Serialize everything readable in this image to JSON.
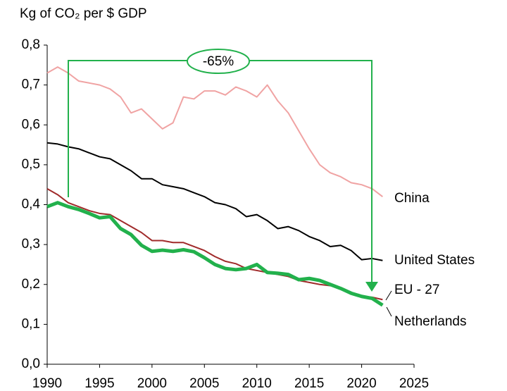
{
  "chart_data": {
    "type": "line",
    "title": "Kg of CO₂ per $ GDP",
    "annotation": "-65%",
    "x": [
      1990,
      1991,
      1992,
      1993,
      1994,
      1995,
      1996,
      1997,
      1998,
      1999,
      2000,
      2001,
      2002,
      2003,
      2004,
      2005,
      2006,
      2007,
      2008,
      2009,
      2010,
      2011,
      2012,
      2013,
      2014,
      2015,
      2016,
      2017,
      2018,
      2019,
      2020,
      2021,
      2022
    ],
    "xlim": [
      1990,
      2025
    ],
    "xticks": [
      1990,
      1995,
      2000,
      2005,
      2010,
      2015,
      2020,
      2025
    ],
    "ylim": [
      0,
      0.8
    ],
    "yticks": [
      {
        "value": 0,
        "label": "0,0"
      },
      {
        "value": 0.1,
        "label": "0,1"
      },
      {
        "value": 0.2,
        "label": "0,2"
      },
      {
        "value": 0.3,
        "label": "0,3"
      },
      {
        "value": 0.4,
        "label": "0,4"
      },
      {
        "value": 0.5,
        "label": "0,5"
      },
      {
        "value": 0.6,
        "label": "0,6"
      },
      {
        "value": 0.7,
        "label": "0,7"
      },
      {
        "value": 0.8,
        "label": "0,8"
      }
    ],
    "grid": false,
    "series": [
      {
        "name": "China",
        "color": "#f0a3a3",
        "values": [
          0.73,
          0.745,
          0.73,
          0.71,
          0.705,
          0.7,
          0.69,
          0.67,
          0.63,
          0.64,
          0.615,
          0.59,
          0.605,
          0.67,
          0.665,
          0.685,
          0.685,
          0.675,
          0.695,
          0.685,
          0.67,
          0.7,
          0.66,
          0.63,
          0.585,
          0.54,
          0.5,
          0.48,
          0.47,
          0.455,
          0.45,
          0.44,
          0.42
        ]
      },
      {
        "name": "United States",
        "color": "#000000",
        "values": [
          0.555,
          0.552,
          0.545,
          0.54,
          0.53,
          0.52,
          0.515,
          0.5,
          0.485,
          0.465,
          0.465,
          0.45,
          0.445,
          0.44,
          0.43,
          0.42,
          0.405,
          0.4,
          0.39,
          0.37,
          0.375,
          0.36,
          0.34,
          0.345,
          0.335,
          0.32,
          0.31,
          0.295,
          0.298,
          0.285,
          0.262,
          0.265,
          0.26
        ]
      },
      {
        "name": "EU - 27",
        "color": "#a02a2a",
        "values": [
          0.44,
          0.425,
          0.405,
          0.395,
          0.385,
          0.378,
          0.375,
          0.36,
          0.345,
          0.33,
          0.31,
          0.31,
          0.305,
          0.305,
          0.295,
          0.285,
          0.27,
          0.258,
          0.252,
          0.24,
          0.235,
          0.23,
          0.225,
          0.22,
          0.21,
          0.205,
          0.2,
          0.197,
          0.19,
          0.18,
          0.17,
          0.168,
          0.162
        ]
      },
      {
        "name": "Netherlands",
        "color": "#22b14c",
        "values": [
          0.395,
          0.405,
          0.395,
          0.388,
          0.378,
          0.367,
          0.37,
          0.34,
          0.325,
          0.298,
          0.283,
          0.286,
          0.283,
          0.287,
          0.282,
          0.267,
          0.25,
          0.24,
          0.237,
          0.24,
          0.25,
          0.23,
          0.228,
          0.225,
          0.212,
          0.215,
          0.21,
          0.2,
          0.19,
          0.178,
          0.17,
          0.165,
          0.148
        ]
      }
    ]
  }
}
